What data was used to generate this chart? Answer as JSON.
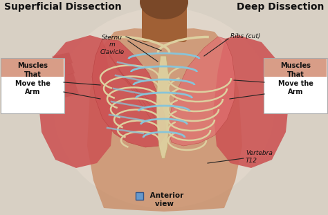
{
  "bg_color": "#d8d0c4",
  "title_left": "Superficial Dissection",
  "title_right": "Deep Dissection",
  "title_fontsize": 10,
  "title_color": "#111111",
  "label_sternum": "Sternu\nm\nClavicle",
  "label_ribs": "Ribs (cut)",
  "label_vertebra": "Vertebra\nT12",
  "label_anterior": " Anterior\n   view",
  "box_left_text": "Muscles\nThat\nMove the\nArm",
  "box_right_text": "Muscles\nThat\nMove the\nArm",
  "box_fill": "#d4937a",
  "muscle_color_dark": "#b84040",
  "muscle_color_mid": "#cc5555",
  "muscle_color_light": "#e07070",
  "rib_bone": "#ddd0a0",
  "rib_blue": "#88c4d8",
  "skin_dark": "#7a4828",
  "skin_mid": "#a06035",
  "skin_light": "#c8845a",
  "line_color": "#222222",
  "anterior_box_color": "#6699cc",
  "figsize": [
    4.74,
    3.11
  ],
  "dpi": 100
}
